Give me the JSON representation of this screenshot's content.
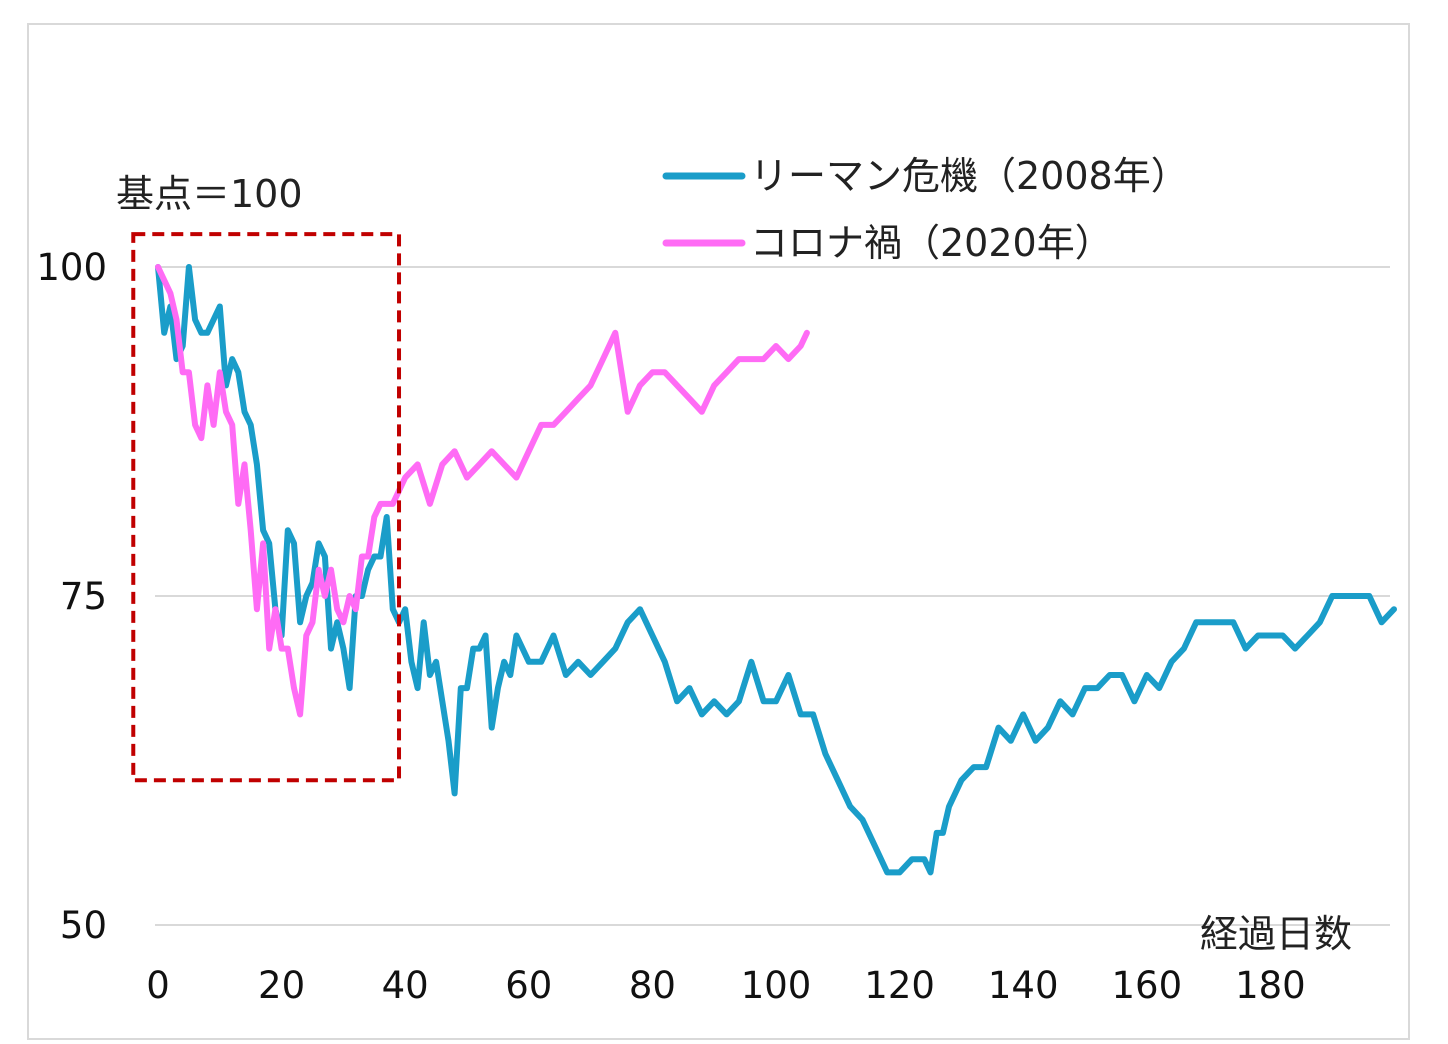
{
  "chart_data": {
    "type": "line",
    "xlabel": "経過日数",
    "annotation": "基点＝100",
    "xlim": [
      0,
      200
    ],
    "ylim": [
      50,
      100
    ],
    "x_ticks": [
      0,
      20,
      40,
      60,
      80,
      100,
      120,
      140,
      160,
      180
    ],
    "y_ticks": [
      50,
      75,
      100
    ],
    "grid": "horizontal",
    "legend_position": "top-right",
    "highlight_box": {
      "x_range": [
        -4,
        39
      ],
      "y_range": [
        61,
        102.5
      ],
      "color": "#c00000",
      "style": "dashed"
    },
    "series": [
      {
        "name": "リーマン危機（2008年）",
        "color": "#1a9dc9",
        "x": [
          0,
          1,
          2,
          3,
          4,
          5,
          6,
          7,
          8,
          9,
          10,
          11,
          12,
          13,
          14,
          15,
          16,
          17,
          18,
          19,
          20,
          21,
          22,
          23,
          24,
          25,
          26,
          27,
          28,
          29,
          30,
          31,
          32,
          33,
          34,
          35,
          36,
          37,
          38,
          39,
          40,
          41,
          42,
          43,
          44,
          45,
          46,
          47,
          48,
          49,
          50,
          51,
          52,
          53,
          54,
          55,
          56,
          57,
          58,
          59,
          60,
          62,
          64,
          66,
          68,
          70,
          72,
          74,
          76,
          78,
          80,
          82,
          84,
          86,
          88,
          90,
          92,
          94,
          96,
          98,
          100,
          102,
          104,
          106,
          108,
          110,
          112,
          114,
          116,
          118,
          120,
          122,
          124,
          125,
          126,
          127,
          128,
          130,
          132,
          134,
          136,
          138,
          140,
          142,
          144,
          146,
          148,
          150,
          152,
          154,
          156,
          158,
          160,
          162,
          164,
          166,
          168,
          170,
          172,
          174,
          176,
          178,
          180,
          182,
          184,
          186,
          188,
          190,
          192,
          194,
          196,
          198,
          200
        ],
        "values": [
          100,
          95,
          97,
          93,
          94,
          100,
          96,
          95,
          95,
          96,
          97,
          91,
          93,
          92,
          89,
          88,
          85,
          80,
          79,
          74,
          72,
          80,
          79,
          73,
          75,
          76,
          79,
          78,
          71,
          73,
          71,
          68,
          75,
          75,
          77,
          78,
          78,
          81,
          74,
          73,
          74,
          70,
          68,
          73,
          69,
          70,
          67,
          64,
          60,
          68,
          68,
          71,
          71,
          72,
          65,
          68,
          70,
          69,
          72,
          71,
          70,
          70,
          72,
          69,
          70,
          69,
          70,
          71,
          73,
          74,
          72,
          70,
          67,
          68,
          66,
          67,
          66,
          67,
          70,
          67,
          67,
          69,
          66,
          66,
          63,
          61,
          59,
          58,
          56,
          54,
          54,
          55,
          55,
          54,
          57,
          57,
          59,
          61,
          62,
          62,
          65,
          64,
          66,
          64,
          65,
          67,
          66,
          68,
          68,
          69,
          69,
          67,
          69,
          68,
          70,
          71,
          73,
          73,
          73,
          73,
          71,
          72,
          72,
          72,
          71,
          72,
          73,
          75,
          75,
          75,
          75,
          73,
          74
        ]
      },
      {
        "name": "コロナ禍（2020年）",
        "color": "#ff6bf5",
        "x": [
          0,
          1,
          2,
          3,
          4,
          5,
          6,
          7,
          8,
          9,
          10,
          11,
          12,
          13,
          14,
          15,
          16,
          17,
          18,
          19,
          20,
          21,
          22,
          23,
          24,
          25,
          26,
          27,
          28,
          29,
          30,
          31,
          32,
          33,
          34,
          35,
          36,
          37,
          38,
          39,
          40,
          42,
          44,
          46,
          48,
          50,
          52,
          54,
          56,
          58,
          60,
          62,
          64,
          66,
          68,
          70,
          72,
          74,
          76,
          78,
          80,
          82,
          84,
          86,
          88,
          90,
          92,
          94,
          96,
          98,
          100,
          102,
          104,
          105
        ],
        "values": [
          100,
          99,
          98,
          96,
          92,
          92,
          88,
          87,
          91,
          88,
          92,
          89,
          88,
          82,
          85,
          80,
          74,
          79,
          71,
          74,
          71,
          71,
          68,
          66,
          72,
          73,
          77,
          75,
          77,
          74,
          73,
          75,
          74,
          78,
          78,
          81,
          82,
          82,
          82,
          83,
          84,
          85,
          82,
          85,
          86,
          84,
          85,
          86,
          85,
          84,
          86,
          88,
          88,
          89,
          90,
          91,
          93,
          95,
          89,
          91,
          92,
          92,
          91,
          90,
          89,
          91,
          92,
          93,
          93,
          93,
          94,
          93,
          94,
          95
        ]
      }
    ]
  }
}
